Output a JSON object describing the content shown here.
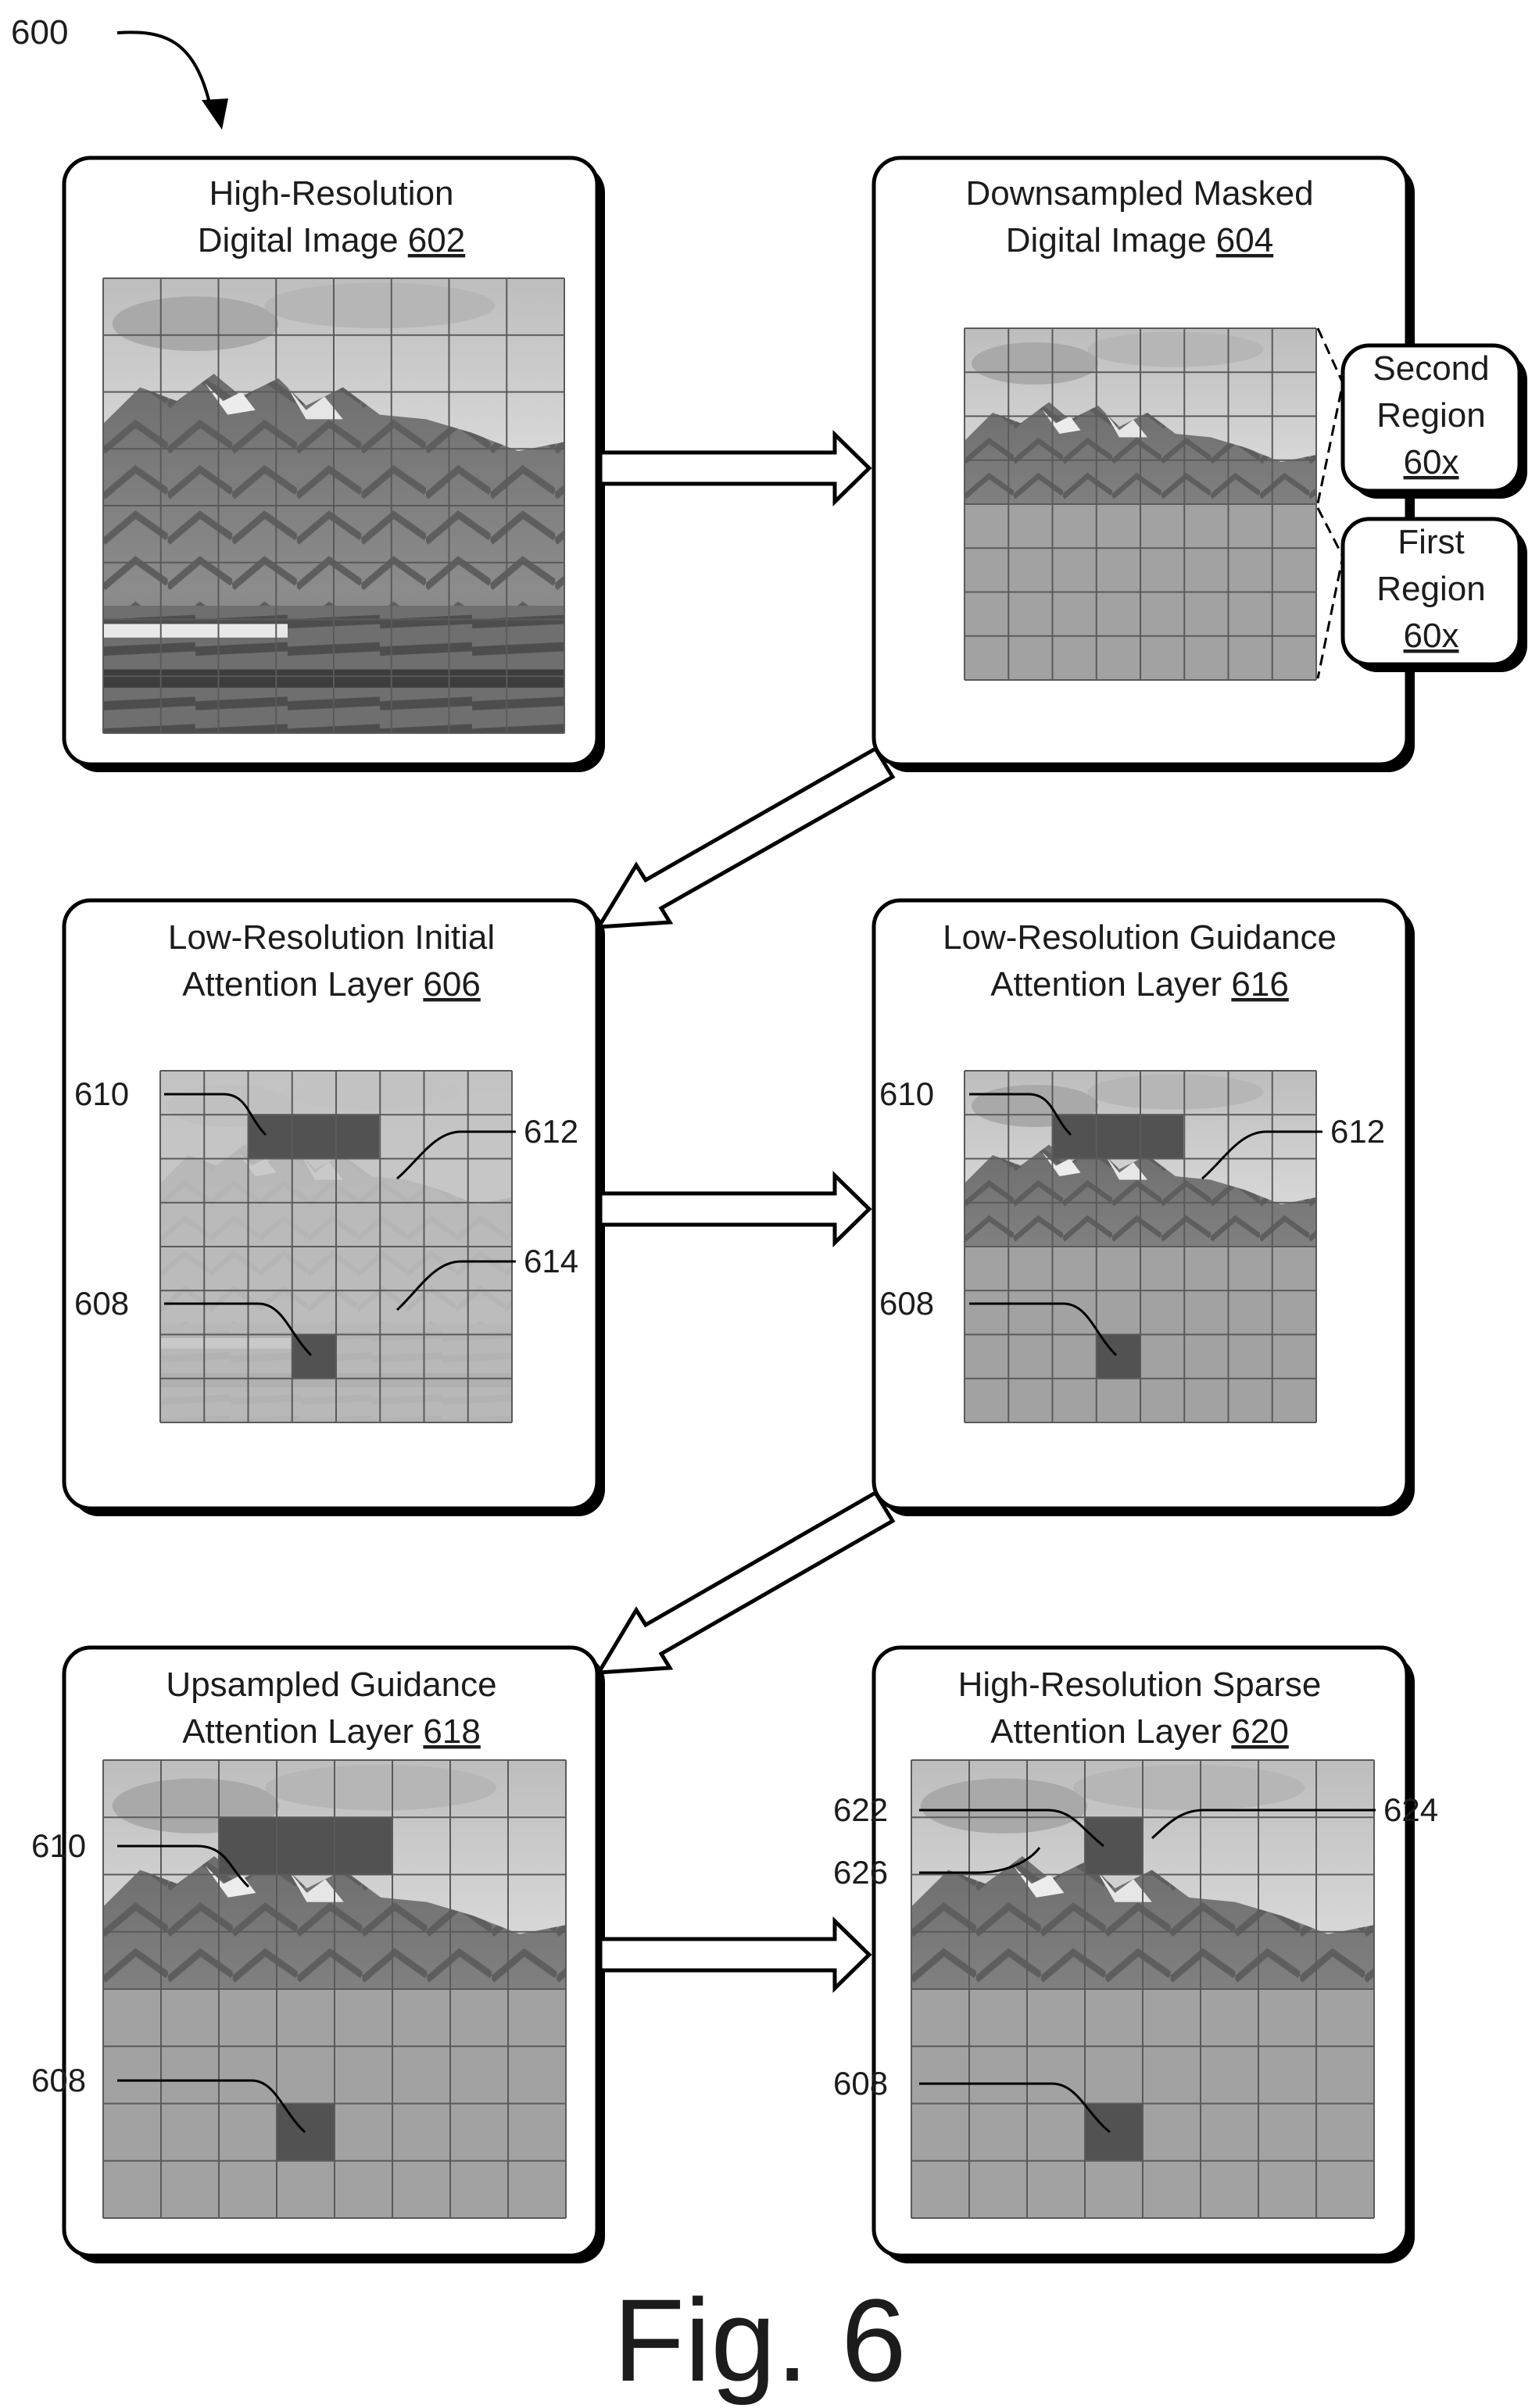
{
  "figure": {
    "reference": "600",
    "label": "Fig. 6"
  },
  "panels": {
    "p602": {
      "title_line1": "High-Resolution",
      "title_line2_text": "Digital Image ",
      "ref": "602"
    },
    "p604": {
      "title_line1": "Downsampled Masked",
      "title_line2_text": "Digital Image ",
      "ref": "604"
    },
    "p606": {
      "title_line1": "Low-Resolution Initial",
      "title_line2_text": "Attention Layer ",
      "ref": "606"
    },
    "p616": {
      "title_line1": "Low-Resolution Guidance",
      "title_line2_text": "Attention Layer ",
      "ref": "616"
    },
    "p618": {
      "title_line1": "Upsampled Guidance",
      "title_line2_text": "Attention Layer ",
      "ref": "618"
    },
    "p620": {
      "title_line1": "High-Resolution Sparse",
      "title_line2_text": "Attention Layer ",
      "ref": "620"
    }
  },
  "regions": {
    "second": {
      "line1": "Second",
      "line2": "Region",
      "ref": "60x"
    },
    "first": {
      "line1": "First",
      "line2": "Region",
      "ref": "60x"
    }
  },
  "callouts": {
    "p606": {
      "c610": "610",
      "c612": "612",
      "c614": "614",
      "c608": "608"
    },
    "p616": {
      "c610": "610",
      "c612": "612",
      "c608": "608"
    },
    "p618": {
      "c610": "610",
      "c608": "608"
    },
    "p620": {
      "c622": "622",
      "c624": "624",
      "c626": "626",
      "c608": "608"
    }
  }
}
